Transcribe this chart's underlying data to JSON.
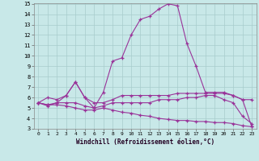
{
  "xlabel": "Windchill (Refroidissement éolien,°C)",
  "background_color": "#c8e8e8",
  "grid_color": "#a8cccc",
  "line_color": "#993399",
  "xlim_min": -0.5,
  "xlim_max": 23.5,
  "ylim_min": 3,
  "ylim_max": 15,
  "xticks": [
    0,
    1,
    2,
    3,
    4,
    5,
    6,
    7,
    8,
    9,
    10,
    11,
    12,
    13,
    14,
    15,
    16,
    17,
    18,
    19,
    20,
    21,
    22,
    23
  ],
  "yticks": [
    3,
    4,
    5,
    6,
    7,
    8,
    9,
    10,
    11,
    12,
    13,
    14,
    15
  ],
  "series": [
    [
      5.5,
      6.0,
      5.8,
      6.2,
      7.5,
      6.0,
      5.0,
      6.5,
      9.5,
      9.8,
      12.0,
      13.5,
      13.8,
      14.5,
      15.0,
      14.8,
      11.2,
      9.0,
      6.5,
      6.5,
      6.5,
      6.2,
      5.8,
      3.2
    ],
    [
      5.5,
      5.3,
      5.5,
      6.2,
      7.5,
      6.0,
      5.5,
      5.5,
      5.8,
      6.2,
      6.2,
      6.2,
      6.2,
      6.2,
      6.2,
      6.4,
      6.4,
      6.4,
      6.4,
      6.4,
      6.4,
      6.2,
      5.8,
      5.8
    ],
    [
      5.5,
      5.2,
      5.5,
      5.5,
      5.5,
      5.2,
      5.0,
      5.2,
      5.5,
      5.5,
      5.5,
      5.5,
      5.5,
      5.8,
      5.8,
      5.8,
      6.0,
      6.0,
      6.2,
      6.2,
      5.8,
      5.5,
      4.2,
      3.5
    ],
    [
      5.5,
      5.3,
      5.3,
      5.2,
      5.0,
      4.8,
      4.8,
      5.0,
      4.8,
      4.6,
      4.5,
      4.3,
      4.2,
      4.0,
      3.9,
      3.8,
      3.8,
      3.7,
      3.7,
      3.6,
      3.6,
      3.5,
      3.3,
      3.2
    ]
  ]
}
